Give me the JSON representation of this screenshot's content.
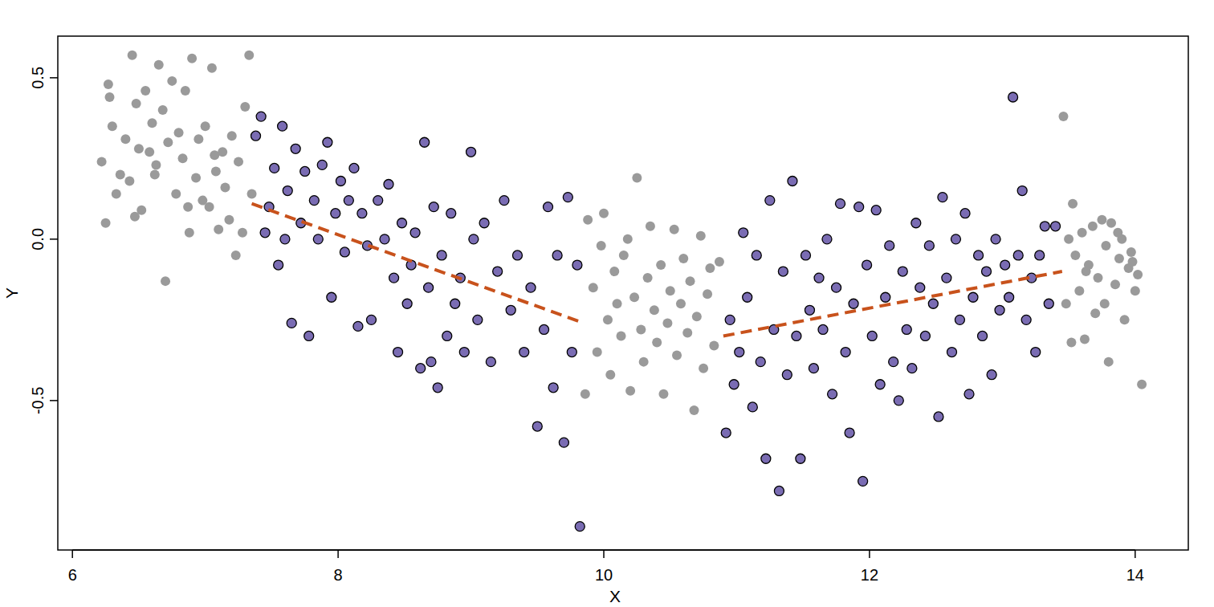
{
  "chart_data": {
    "type": "scatter",
    "x_label": "X",
    "y_label": "Y",
    "xlim": [
      5.89,
      14.4
    ],
    "ylim": [
      -0.963,
      0.629
    ],
    "xticks": [
      6,
      8,
      10,
      12,
      14
    ],
    "yticks": [
      -0.5,
      {
        "value": 0,
        "label": "0.0"
      },
      0.5
    ],
    "series": [
      {
        "color": "#9a9a9a",
        "marker": "circle",
        "x": [
          6.22,
          6.25,
          6.28,
          6.3,
          6.33,
          6.36,
          6.4,
          6.43,
          6.45,
          6.48,
          6.5,
          6.52,
          6.55,
          6.58,
          6.6,
          6.63,
          6.65,
          6.68,
          6.7,
          6.72,
          6.75,
          6.78,
          6.8,
          6.83,
          6.85,
          6.88,
          6.9,
          6.93,
          6.95,
          6.98,
          7.0,
          7.03,
          7.05,
          7.08,
          7.1,
          7.13,
          7.15,
          7.18,
          7.2,
          7.23,
          7.25,
          7.28,
          7.3,
          7.33,
          7.35,
          6.27,
          6.47,
          6.62,
          6.87,
          7.07
        ],
        "values": [
          0.24,
          0.05,
          0.44,
          0.35,
          0.14,
          0.2,
          0.31,
          0.18,
          0.57,
          0.42,
          0.28,
          0.09,
          0.46,
          0.27,
          0.36,
          0.23,
          0.54,
          0.4,
          -0.13,
          0.3,
          0.49,
          0.14,
          0.33,
          0.25,
          0.46,
          0.02,
          0.56,
          0.19,
          0.31,
          0.12,
          0.35,
          0.1,
          0.53,
          0.21,
          0.03,
          0.27,
          0.16,
          0.06,
          0.32,
          -0.05,
          0.24,
          0.02,
          0.41,
          0.57,
          0.14,
          0.48,
          0.07,
          0.2,
          0.1,
          0.26
        ]
      },
      {
        "color": "#9a9a9a",
        "marker": "circle",
        "x": [
          9.86,
          9.88,
          9.92,
          9.95,
          9.98,
          10.0,
          10.03,
          10.05,
          10.08,
          10.1,
          10.13,
          10.15,
          10.18,
          10.2,
          10.23,
          10.25,
          10.28,
          10.3,
          10.33,
          10.35,
          10.38,
          10.4,
          10.43,
          10.45,
          10.48,
          10.5,
          10.53,
          10.55,
          10.58,
          10.6,
          10.63,
          10.65,
          10.68,
          10.7,
          10.73,
          10.75,
          10.78,
          10.8,
          10.83,
          10.87
        ],
        "values": [
          -0.48,
          0.06,
          -0.15,
          -0.35,
          -0.02,
          0.08,
          -0.25,
          -0.42,
          -0.1,
          -0.2,
          -0.3,
          -0.05,
          0.0,
          -0.47,
          -0.18,
          0.19,
          -0.28,
          -0.38,
          -0.12,
          0.04,
          -0.22,
          -0.32,
          -0.08,
          -0.48,
          -0.26,
          -0.16,
          0.03,
          -0.36,
          -0.2,
          -0.06,
          -0.29,
          -0.13,
          -0.53,
          -0.24,
          0.01,
          -0.4,
          -0.17,
          -0.09,
          -0.33,
          -0.07
        ]
      },
      {
        "color": "#9a9a9a",
        "marker": "circle",
        "x": [
          13.46,
          13.48,
          13.5,
          13.53,
          13.55,
          13.58,
          13.6,
          13.62,
          13.65,
          13.68,
          13.7,
          13.72,
          13.75,
          13.78,
          13.8,
          13.82,
          13.85,
          13.88,
          13.9,
          13.92,
          13.95,
          13.97,
          14.0,
          14.02,
          14.05,
          13.52,
          13.63,
          13.77,
          13.87,
          13.98
        ],
        "values": [
          0.38,
          -0.2,
          0.0,
          0.11,
          -0.05,
          -0.16,
          0.02,
          -0.31,
          -0.08,
          0.04,
          -0.23,
          -0.12,
          0.06,
          -0.02,
          -0.38,
          0.05,
          -0.14,
          -0.06,
          0.0,
          -0.25,
          -0.09,
          -0.04,
          -0.16,
          -0.11,
          -0.45,
          -0.32,
          -0.1,
          -0.2,
          0.02,
          -0.07
        ]
      },
      {
        "color": "#7a6cb3",
        "marker": "bordered-circle",
        "x": [
          7.38,
          7.42,
          7.45,
          7.48,
          7.52,
          7.55,
          7.58,
          7.62,
          7.65,
          7.68,
          7.72,
          7.75,
          7.78,
          7.82,
          7.85,
          7.88,
          7.92,
          7.95,
          7.98,
          8.02,
          8.05,
          8.08,
          8.12,
          8.15,
          8.18,
          8.22,
          8.25,
          8.3,
          8.35,
          8.38,
          8.42,
          8.45,
          8.48,
          8.52,
          8.55,
          8.58,
          8.62,
          8.65,
          8.68,
          8.72,
          8.75,
          8.78,
          8.82,
          8.85,
          8.88,
          8.92,
          8.95,
          9.0,
          9.02,
          9.05,
          9.1,
          9.15,
          9.2,
          9.25,
          9.3,
          9.35,
          9.4,
          9.45,
          9.5,
          9.55,
          9.58,
          9.62,
          9.65,
          9.7,
          9.73,
          9.76,
          9.8,
          9.82,
          7.6,
          8.7
        ],
        "values": [
          0.32,
          0.38,
          0.02,
          0.1,
          0.22,
          -0.08,
          0.35,
          0.15,
          -0.26,
          0.28,
          0.05,
          0.21,
          -0.3,
          0.12,
          0.0,
          0.23,
          0.3,
          -0.18,
          0.08,
          0.18,
          -0.04,
          0.12,
          0.22,
          -0.27,
          0.08,
          -0.02,
          -0.25,
          0.12,
          0.0,
          0.17,
          -0.12,
          -0.35,
          0.05,
          -0.2,
          -0.08,
          0.02,
          -0.4,
          0.3,
          -0.15,
          0.1,
          -0.46,
          -0.05,
          -0.3,
          0.08,
          -0.2,
          -0.12,
          -0.35,
          0.27,
          0.0,
          -0.25,
          0.05,
          -0.38,
          -0.1,
          0.12,
          -0.22,
          -0.05,
          -0.35,
          -0.15,
          -0.58,
          -0.28,
          0.1,
          -0.46,
          -0.05,
          -0.63,
          0.13,
          -0.35,
          -0.08,
          -0.89,
          0.0,
          -0.38
        ]
      },
      {
        "color": "#7a6cb3",
        "marker": "bordered-circle",
        "x": [
          10.92,
          10.95,
          10.98,
          11.02,
          11.05,
          11.08,
          11.12,
          11.15,
          11.18,
          11.22,
          11.25,
          11.28,
          11.32,
          11.35,
          11.38,
          11.42,
          11.45,
          11.48,
          11.52,
          11.55,
          11.58,
          11.62,
          11.65,
          11.68,
          11.72,
          11.75,
          11.78,
          11.82,
          11.85,
          11.88,
          11.92,
          11.95,
          11.98,
          12.02,
          12.05,
          12.08,
          12.12,
          12.15,
          12.18,
          12.22,
          12.25,
          12.28,
          12.32,
          12.35,
          12.38,
          12.42,
          12.45,
          12.48,
          12.52,
          12.55,
          12.58,
          12.62,
          12.65,
          12.68,
          12.72,
          12.75,
          12.78,
          12.82,
          12.85,
          12.88,
          12.92,
          12.95,
          12.98,
          13.02,
          13.05,
          13.08,
          13.12,
          13.15,
          13.18,
          13.22,
          13.25,
          13.28,
          13.32,
          13.35,
          13.4
        ],
        "values": [
          -0.6,
          -0.25,
          -0.45,
          -0.35,
          0.02,
          -0.18,
          -0.52,
          -0.05,
          -0.38,
          -0.68,
          0.12,
          -0.28,
          -0.78,
          -0.1,
          -0.42,
          0.18,
          -0.3,
          -0.68,
          -0.05,
          -0.22,
          -0.4,
          -0.12,
          -0.28,
          0.0,
          -0.48,
          -0.15,
          0.11,
          -0.35,
          -0.6,
          -0.2,
          0.1,
          -0.75,
          -0.08,
          -0.3,
          0.09,
          -0.45,
          -0.18,
          -0.02,
          -0.38,
          -0.5,
          -0.1,
          -0.28,
          -0.4,
          0.05,
          -0.15,
          -0.3,
          -0.02,
          -0.2,
          -0.55,
          0.13,
          -0.12,
          -0.35,
          0.0,
          -0.25,
          0.08,
          -0.48,
          -0.18,
          -0.05,
          -0.3,
          -0.1,
          -0.42,
          0.0,
          -0.22,
          -0.08,
          -0.18,
          0.44,
          -0.05,
          0.15,
          -0.25,
          -0.12,
          -0.35,
          -0.05,
          0.04,
          -0.2,
          0.04
        ]
      },
      {
        "type": "line",
        "color": "#c8521c",
        "line_style": "dashed",
        "x": [
          7.35,
          9.85
        ],
        "values": [
          0.11,
          -0.26
        ]
      },
      {
        "type": "line",
        "color": "#c8521c",
        "line_style": "dashed",
        "x": [
          10.9,
          13.45
        ],
        "values": [
          -0.3,
          -0.1
        ]
      }
    ]
  }
}
